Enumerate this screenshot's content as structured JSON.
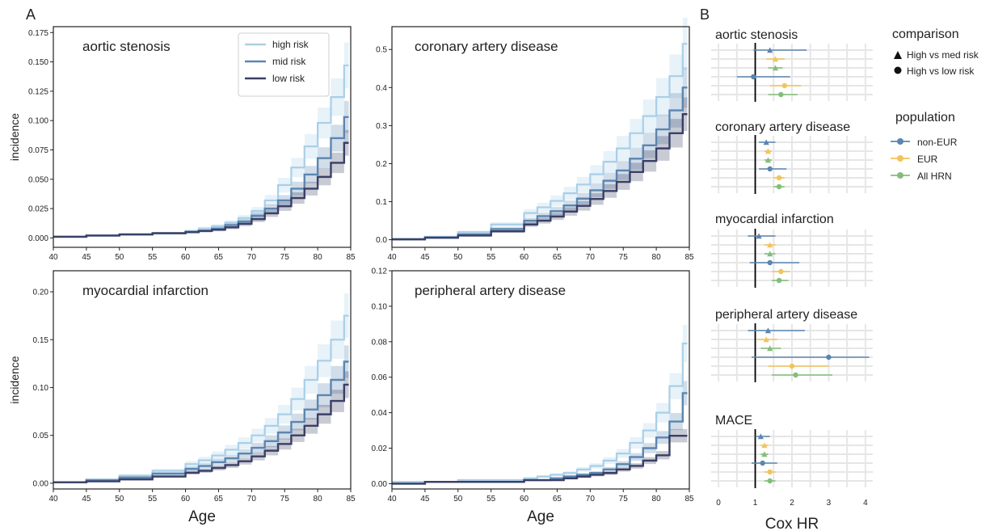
{
  "figure": {
    "panel_a_letter": "A",
    "panel_b_letter": "B",
    "x_axis_label": "Age",
    "y_axis_label": "incidence",
    "forest_x_axis_label": "Cox HR"
  },
  "colors": {
    "high_risk": "#a9cfe8",
    "mid_risk": "#5b86b0",
    "low_risk": "#3a3f66",
    "non_eur": "#5b86b0",
    "eur": "#f2c45c",
    "all_hrn": "#84bd7b"
  },
  "chart_data": [
    {
      "type": "line",
      "title": "aortic stenosis",
      "xlabel": "",
      "ylabel": "incidence",
      "xlim": [
        40,
        85
      ],
      "ylim": [
        -0.008,
        0.18
      ],
      "xticks": [
        "40",
        "45",
        "50",
        "55",
        "60",
        "65",
        "70",
        "75",
        "80",
        "85"
      ],
      "yticks": [
        "0.000",
        "0.025",
        "0.050",
        "0.075",
        "0.100",
        "0.125",
        "0.150",
        "0.175"
      ],
      "legend": {
        "placement": "top-right",
        "entries": [
          "high risk",
          "mid risk",
          "low risk"
        ]
      },
      "x": [
        40,
        45,
        50,
        55,
        60,
        62,
        64,
        66,
        68,
        70,
        72,
        74,
        76,
        78,
        80,
        82,
        84
      ],
      "series": [
        {
          "name": "high risk",
          "values": [
            0.001,
            0.002,
            0.003,
            0.004,
            0.006,
            0.008,
            0.01,
            0.013,
            0.017,
            0.023,
            0.032,
            0.045,
            0.06,
            0.078,
            0.098,
            0.12,
            0.147
          ]
        },
        {
          "name": "mid risk",
          "values": [
            0.001,
            0.002,
            0.003,
            0.004,
            0.005,
            0.006,
            0.008,
            0.011,
            0.014,
            0.019,
            0.025,
            0.032,
            0.042,
            0.054,
            0.068,
            0.085,
            0.103
          ]
        },
        {
          "name": "low risk",
          "values": [
            0.001,
            0.002,
            0.003,
            0.004,
            0.005,
            0.006,
            0.007,
            0.009,
            0.012,
            0.016,
            0.021,
            0.027,
            0.034,
            0.042,
            0.052,
            0.064,
            0.081
          ]
        }
      ]
    },
    {
      "type": "line",
      "title": "coronary artery disease",
      "xlabel": "",
      "ylabel": "",
      "xlim": [
        40,
        85
      ],
      "ylim": [
        -0.02,
        0.56
      ],
      "xticks": [
        "40",
        "45",
        "50",
        "55",
        "60",
        "65",
        "70",
        "75",
        "80",
        "85"
      ],
      "yticks": [
        "0.0",
        "0.1",
        "0.2",
        "0.3",
        "0.4",
        "0.5"
      ],
      "x": [
        40,
        45,
        50,
        55,
        60,
        62,
        64,
        66,
        68,
        70,
        72,
        74,
        76,
        78,
        80,
        82,
        84
      ],
      "series": [
        {
          "name": "high risk",
          "values": [
            0.002,
            0.008,
            0.02,
            0.04,
            0.07,
            0.085,
            0.102,
            0.122,
            0.145,
            0.172,
            0.205,
            0.24,
            0.28,
            0.325,
            0.375,
            0.43,
            0.515
          ]
        },
        {
          "name": "mid risk",
          "values": [
            0.001,
            0.006,
            0.014,
            0.028,
            0.05,
            0.062,
            0.075,
            0.09,
            0.108,
            0.13,
            0.155,
            0.182,
            0.213,
            0.248,
            0.29,
            0.34,
            0.4
          ]
        },
        {
          "name": "low risk",
          "values": [
            0.001,
            0.005,
            0.011,
            0.022,
            0.04,
            0.05,
            0.061,
            0.074,
            0.089,
            0.107,
            0.128,
            0.152,
            0.178,
            0.207,
            0.24,
            0.28,
            0.33
          ]
        }
      ]
    },
    {
      "type": "line",
      "title": "myocardial infarction",
      "xlabel": "Age",
      "ylabel": "incidence",
      "xlim": [
        40,
        85
      ],
      "ylim": [
        -0.006,
        0.222
      ],
      "xticks": [
        "40",
        "45",
        "50",
        "55",
        "60",
        "65",
        "70",
        "75",
        "80",
        "85"
      ],
      "yticks": [
        "0.00",
        "0.05",
        "0.10",
        "0.15",
        "0.20"
      ],
      "x": [
        40,
        45,
        50,
        55,
        60,
        62,
        64,
        66,
        68,
        70,
        72,
        74,
        76,
        78,
        80,
        82,
        84
      ],
      "series": [
        {
          "name": "high risk",
          "values": [
            0.001,
            0.004,
            0.008,
            0.013,
            0.02,
            0.024,
            0.029,
            0.035,
            0.042,
            0.05,
            0.06,
            0.072,
            0.088,
            0.108,
            0.128,
            0.15,
            0.175
          ]
        },
        {
          "name": "mid risk",
          "values": [
            0.001,
            0.003,
            0.006,
            0.01,
            0.015,
            0.018,
            0.022,
            0.026,
            0.031,
            0.037,
            0.044,
            0.053,
            0.064,
            0.077,
            0.092,
            0.108,
            0.127
          ]
        },
        {
          "name": "low risk",
          "values": [
            0.001,
            0.002,
            0.004,
            0.007,
            0.011,
            0.013,
            0.016,
            0.019,
            0.023,
            0.028,
            0.034,
            0.041,
            0.05,
            0.06,
            0.072,
            0.086,
            0.103
          ]
        }
      ]
    },
    {
      "type": "line",
      "title": "peripheral artery disease",
      "xlabel": "Age",
      "ylabel": "",
      "xlim": [
        40,
        85
      ],
      "ylim": [
        -0.003,
        0.12
      ],
      "xticks": [
        "40",
        "45",
        "50",
        "55",
        "60",
        "65",
        "70",
        "75",
        "80",
        "85"
      ],
      "yticks": [
        "0.00",
        "0.02",
        "0.04",
        "0.06",
        "0.08",
        "0.10",
        "0.12"
      ],
      "x": [
        40,
        45,
        50,
        55,
        60,
        62,
        64,
        66,
        68,
        70,
        72,
        74,
        76,
        78,
        80,
        82,
        84
      ],
      "series": [
        {
          "name": "high risk",
          "values": [
            0.001,
            0.001,
            0.002,
            0.002,
            0.003,
            0.004,
            0.005,
            0.006,
            0.008,
            0.01,
            0.013,
            0.017,
            0.023,
            0.03,
            0.04,
            0.055,
            0.079
          ]
        },
        {
          "name": "mid risk",
          "values": [
            0.0,
            0.001,
            0.001,
            0.001,
            0.002,
            0.002,
            0.003,
            0.004,
            0.005,
            0.006,
            0.008,
            0.011,
            0.015,
            0.02,
            0.026,
            0.035,
            0.051
          ]
        },
        {
          "name": "low risk",
          "values": [
            0.0,
            0.001,
            0.001,
            0.001,
            0.002,
            0.002,
            0.002,
            0.003,
            0.004,
            0.005,
            0.006,
            0.008,
            0.01,
            0.013,
            0.016,
            0.027,
            0.027
          ]
        }
      ]
    },
    {
      "type": "scatter",
      "xlabel": "Cox HR",
      "xlim": [
        -0.2,
        4.2
      ],
      "xticks": [
        "0",
        "1",
        "2",
        "3",
        "4"
      ],
      "reference_line": 1,
      "legend": {
        "placement": "right",
        "comparison_title": "comparison",
        "comparison_entries": [
          "High vs med risk",
          "High vs low risk"
        ],
        "population_title": "population",
        "population_entries": [
          "non-EUR",
          "EUR",
          "All HRN"
        ]
      },
      "groups": [
        {
          "title": "aortic stenosis",
          "rows": [
            {
              "population": "non-EUR",
              "comparison": "High vs med risk",
              "hr": 1.4,
              "lo": 0.95,
              "hi": 2.4
            },
            {
              "population": "EUR",
              "comparison": "High vs med risk",
              "hr": 1.55,
              "lo": 1.3,
              "hi": 1.8
            },
            {
              "population": "All HRN",
              "comparison": "High vs med risk",
              "hr": 1.55,
              "lo": 1.35,
              "hi": 1.75
            },
            {
              "population": "non-EUR",
              "comparison": "High vs low risk",
              "hr": 0.95,
              "lo": 0.5,
              "hi": 1.95
            },
            {
              "population": "EUR",
              "comparison": "High vs low risk",
              "hr": 1.8,
              "lo": 1.4,
              "hi": 2.25
            },
            {
              "population": "All HRN",
              "comparison": "High vs low risk",
              "hr": 1.7,
              "lo": 1.35,
              "hi": 2.15
            }
          ]
        },
        {
          "title": "coronary artery disease",
          "rows": [
            {
              "population": "non-EUR",
              "comparison": "High vs med risk",
              "hr": 1.3,
              "lo": 1.1,
              "hi": 1.55
            },
            {
              "population": "EUR",
              "comparison": "High vs med risk",
              "hr": 1.35,
              "lo": 1.25,
              "hi": 1.45
            },
            {
              "population": "All HRN",
              "comparison": "High vs med risk",
              "hr": 1.35,
              "lo": 1.25,
              "hi": 1.45
            },
            {
              "population": "non-EUR",
              "comparison": "High vs low risk",
              "hr": 1.4,
              "lo": 1.1,
              "hi": 1.85
            },
            {
              "population": "EUR",
              "comparison": "High vs low risk",
              "hr": 1.65,
              "lo": 1.5,
              "hi": 1.8
            },
            {
              "population": "All HRN",
              "comparison": "High vs low risk",
              "hr": 1.65,
              "lo": 1.5,
              "hi": 1.8
            }
          ]
        },
        {
          "title": "myocardial infarction",
          "rows": [
            {
              "population": "non-EUR",
              "comparison": "High vs med risk",
              "hr": 1.1,
              "lo": 0.8,
              "hi": 1.55
            },
            {
              "population": "EUR",
              "comparison": "High vs med risk",
              "hr": 1.4,
              "lo": 1.25,
              "hi": 1.55
            },
            {
              "population": "All HRN",
              "comparison": "High vs med risk",
              "hr": 1.4,
              "lo": 1.25,
              "hi": 1.55
            },
            {
              "population": "non-EUR",
              "comparison": "High vs low risk",
              "hr": 1.4,
              "lo": 0.85,
              "hi": 2.2
            },
            {
              "population": "EUR",
              "comparison": "High vs low risk",
              "hr": 1.7,
              "lo": 1.45,
              "hi": 1.95
            },
            {
              "population": "All HRN",
              "comparison": "High vs low risk",
              "hr": 1.65,
              "lo": 1.45,
              "hi": 1.9
            }
          ]
        },
        {
          "title": "peripheral artery disease",
          "rows": [
            {
              "population": "non-EUR",
              "comparison": "High vs med risk",
              "hr": 1.35,
              "lo": 0.8,
              "hi": 2.35
            },
            {
              "population": "EUR",
              "comparison": "High vs med risk",
              "hr": 1.3,
              "lo": 1.05,
              "hi": 1.6
            },
            {
              "population": "All HRN",
              "comparison": "High vs med risk",
              "hr": 1.4,
              "lo": 1.15,
              "hi": 1.7
            },
            {
              "population": "non-EUR",
              "comparison": "High vs low risk",
              "hr": 3.0,
              "lo": 0.9,
              "hi": 4.1
            },
            {
              "population": "EUR",
              "comparison": "High vs low risk",
              "hr": 2.0,
              "lo": 1.35,
              "hi": 3.0
            },
            {
              "population": "All HRN",
              "comparison": "High vs low risk",
              "hr": 2.1,
              "lo": 1.45,
              "hi": 3.1
            }
          ]
        },
        {
          "title": "MACE",
          "rows": [
            {
              "population": "non-EUR",
              "comparison": "High vs med risk",
              "hr": 1.15,
              "lo": 1.0,
              "hi": 1.4
            },
            {
              "population": "EUR",
              "comparison": "High vs med risk",
              "hr": 1.25,
              "lo": 1.15,
              "hi": 1.35
            },
            {
              "population": "All HRN",
              "comparison": "High vs med risk",
              "hr": 1.25,
              "lo": 1.15,
              "hi": 1.35
            },
            {
              "population": "non-EUR",
              "comparison": "High vs low risk",
              "hr": 1.2,
              "lo": 0.9,
              "hi": 1.6
            },
            {
              "population": "EUR",
              "comparison": "High vs low risk",
              "hr": 1.4,
              "lo": 1.25,
              "hi": 1.55
            },
            {
              "population": "All HRN",
              "comparison": "High vs low risk",
              "hr": 1.4,
              "lo": 1.25,
              "hi": 1.55
            }
          ]
        }
      ]
    }
  ]
}
